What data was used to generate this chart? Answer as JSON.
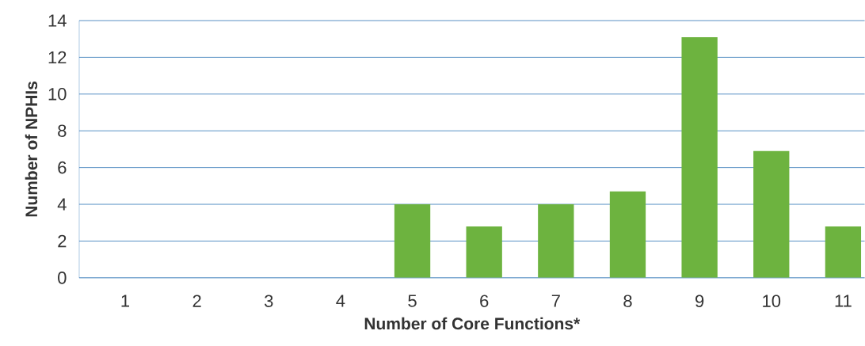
{
  "chart_data": {
    "type": "bar",
    "xlabel": "Number of Core Functions*",
    "ylabel": "Number of NPHIs",
    "categories": [
      "1",
      "2",
      "3",
      "4",
      "5",
      "6",
      "7",
      "8",
      "9",
      "10",
      "11"
    ],
    "values": [
      0,
      0,
      0,
      0,
      4,
      2.8,
      4,
      4.7,
      13.1,
      6.9,
      2.8
    ],
    "color": "#6db33f",
    "ylim": [
      0,
      14
    ],
    "yticks": [
      0,
      2,
      4,
      6,
      8,
      10,
      12,
      14
    ],
    "grid": "y"
  }
}
